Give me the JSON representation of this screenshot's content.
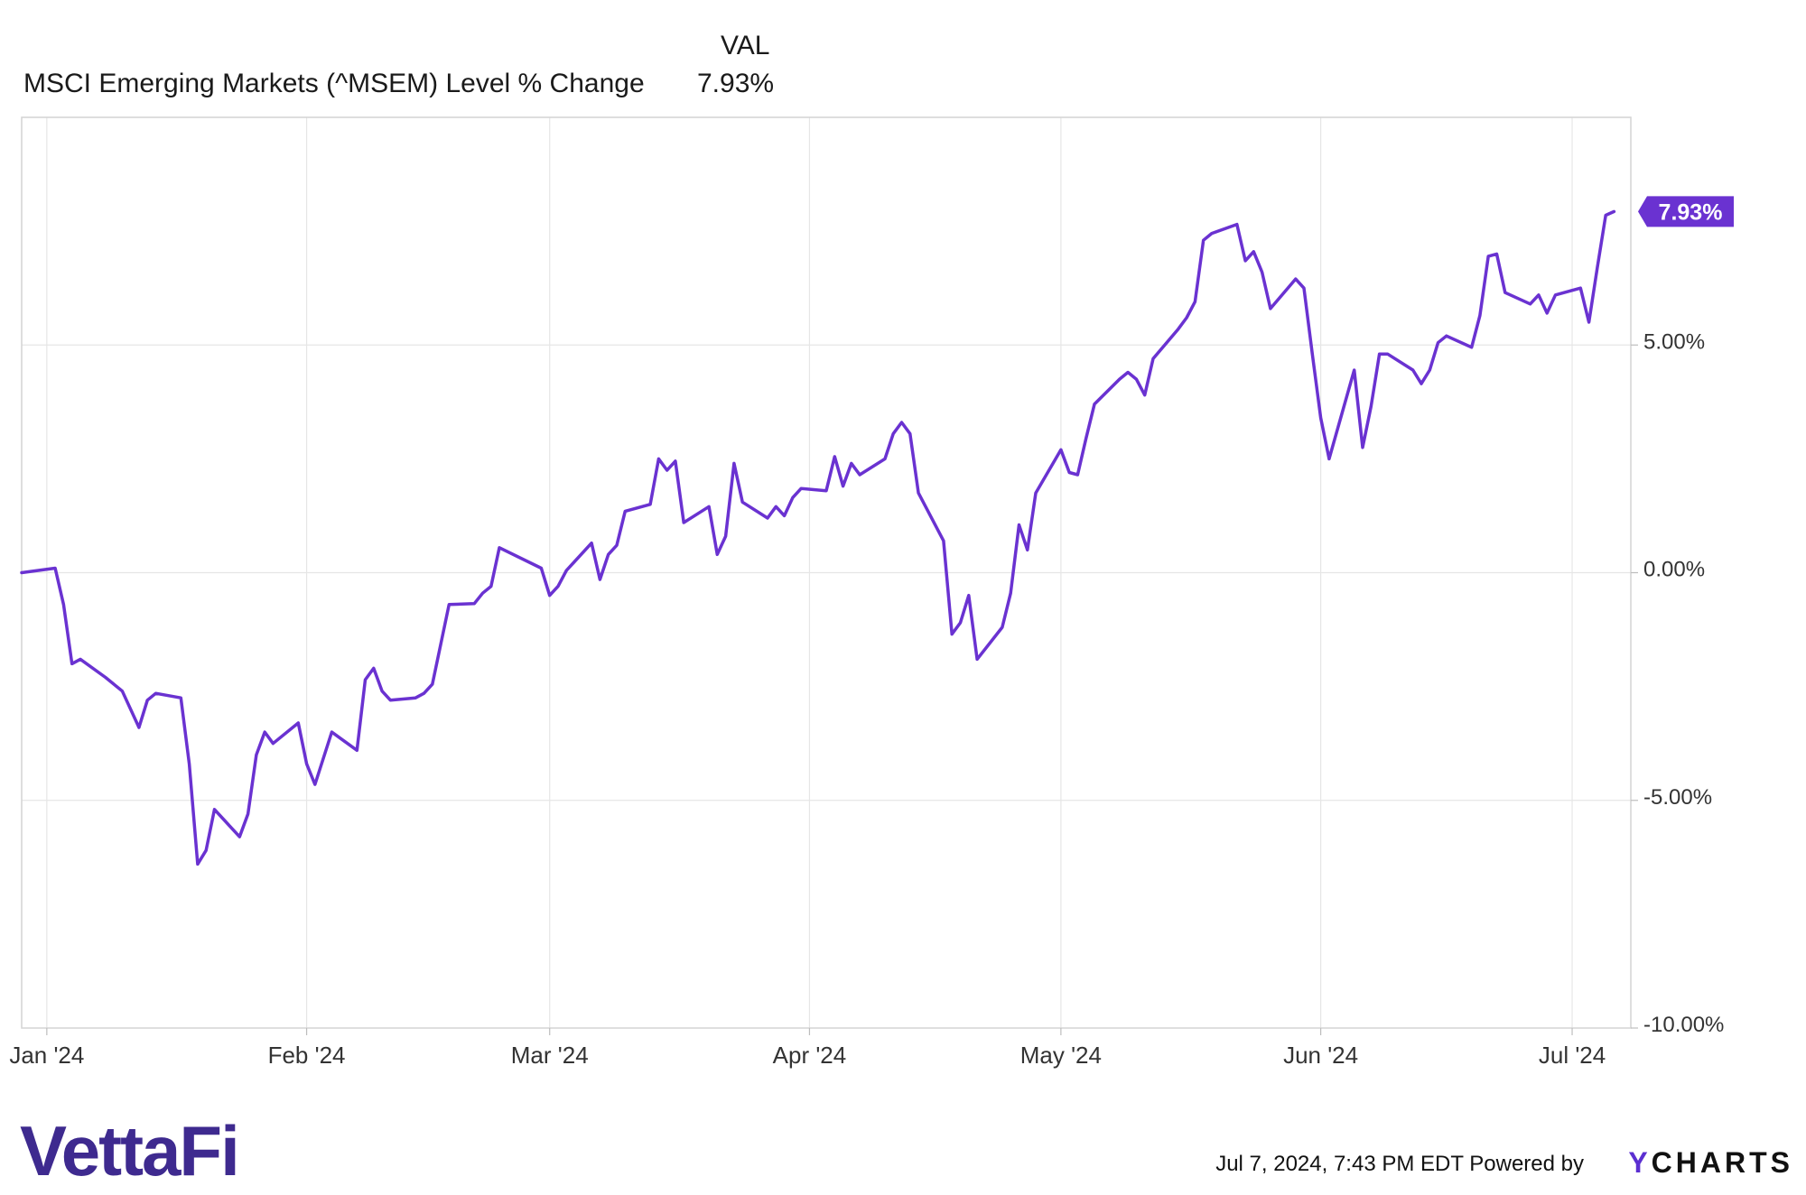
{
  "header": {
    "column_label": "VAL",
    "series_label": "MSCI Emerging Markets (^MSEM) Level % Change",
    "series_value": "7.93%"
  },
  "footer": {
    "timestamp": "Jul 7, 2024, 7:43 PM EDT",
    "powered_by": "Powered by",
    "ycharts_y": "Y",
    "ycharts_rest": "CHARTS",
    "brand": "VettaFi"
  },
  "colors": {
    "line": "#6a32d1",
    "end_tag": "#6a32d1",
    "grid": "#e6e6e6",
    "brand": "#3e2a8f"
  },
  "chart_data": {
    "type": "line",
    "title": "MSCI Emerging Markets (^MSEM) Level % Change",
    "xlabel": "",
    "ylabel": "",
    "grid": true,
    "legend": "top-left",
    "ylim": [
      -10,
      10
    ],
    "y_ticks": [
      {
        "value": 5,
        "label": "5.00%"
      },
      {
        "value": 0,
        "label": "0.00%"
      },
      {
        "value": -5,
        "label": "-5.00%"
      },
      {
        "value": -10,
        "label": "-10.00%"
      }
    ],
    "xlim": [
      "2023-12-29",
      "2024-07-08"
    ],
    "x_ticks": [
      {
        "date": "2024-01-01",
        "label": "Jan '24"
      },
      {
        "date": "2024-02-01",
        "label": "Feb '24"
      },
      {
        "date": "2024-03-01",
        "label": "Mar '24"
      },
      {
        "date": "2024-04-01",
        "label": "Apr '24"
      },
      {
        "date": "2024-05-01",
        "label": "May '24"
      },
      {
        "date": "2024-06-01",
        "label": "Jun '24"
      },
      {
        "date": "2024-07-01",
        "label": "Jul '24"
      }
    ],
    "end_label": "7.93%",
    "series": [
      {
        "name": "MSCI Emerging Markets (^MSEM) Level % Change",
        "points": [
          [
            "2023-12-29",
            0.0
          ],
          [
            "2024-01-02",
            0.1
          ],
          [
            "2024-01-03",
            -0.7
          ],
          [
            "2024-01-04",
            -2.0
          ],
          [
            "2024-01-05",
            -1.9
          ],
          [
            "2024-01-08",
            -2.3
          ],
          [
            "2024-01-10",
            -2.6
          ],
          [
            "2024-01-12",
            -3.4
          ],
          [
            "2024-01-13",
            -2.8
          ],
          [
            "2024-01-14",
            -2.65
          ],
          [
            "2024-01-17",
            -2.75
          ],
          [
            "2024-01-18",
            -4.2
          ],
          [
            "2024-01-19",
            -6.4
          ],
          [
            "2024-01-20",
            -6.1
          ],
          [
            "2024-01-21",
            -5.2
          ],
          [
            "2024-01-24",
            -5.8
          ],
          [
            "2024-01-25",
            -5.3
          ],
          [
            "2024-01-26",
            -4.0
          ],
          [
            "2024-01-27",
            -3.5
          ],
          [
            "2024-01-28",
            -3.75
          ],
          [
            "2024-01-31",
            -3.3
          ],
          [
            "2024-02-01",
            -4.2
          ],
          [
            "2024-02-02",
            -4.65
          ],
          [
            "2024-02-04",
            -3.5
          ],
          [
            "2024-02-07",
            -3.9
          ],
          [
            "2024-02-08",
            -2.35
          ],
          [
            "2024-02-09",
            -2.1
          ],
          [
            "2024-02-10",
            -2.6
          ],
          [
            "2024-02-11",
            -2.8
          ],
          [
            "2024-02-14",
            -2.75
          ],
          [
            "2024-02-15",
            -2.65
          ],
          [
            "2024-02-16",
            -2.45
          ],
          [
            "2024-02-18",
            -0.7
          ],
          [
            "2024-02-21",
            -0.68
          ],
          [
            "2024-02-22",
            -0.45
          ],
          [
            "2024-02-23",
            -0.3
          ],
          [
            "2024-02-24",
            0.55
          ],
          [
            "2024-02-29",
            0.1
          ],
          [
            "2024-03-01",
            -0.5
          ],
          [
            "2024-03-02",
            -0.3
          ],
          [
            "2024-03-03",
            0.05
          ],
          [
            "2024-03-06",
            0.65
          ],
          [
            "2024-03-07",
            -0.15
          ],
          [
            "2024-03-08",
            0.4
          ],
          [
            "2024-03-09",
            0.6
          ],
          [
            "2024-03-10",
            1.35
          ],
          [
            "2024-03-13",
            1.5
          ],
          [
            "2024-03-14",
            2.5
          ],
          [
            "2024-03-15",
            2.25
          ],
          [
            "2024-03-16",
            2.45
          ],
          [
            "2024-03-17",
            1.1
          ],
          [
            "2024-03-20",
            1.45
          ],
          [
            "2024-03-21",
            0.4
          ],
          [
            "2024-03-22",
            0.8
          ],
          [
            "2024-03-23",
            2.4
          ],
          [
            "2024-03-24",
            1.55
          ],
          [
            "2024-03-27",
            1.2
          ],
          [
            "2024-03-28",
            1.45
          ],
          [
            "2024-03-29",
            1.25
          ],
          [
            "2024-03-30",
            1.65
          ],
          [
            "2024-03-31",
            1.85
          ],
          [
            "2024-04-03",
            1.8
          ],
          [
            "2024-04-04",
            2.55
          ],
          [
            "2024-04-05",
            1.9
          ],
          [
            "2024-04-06",
            2.4
          ],
          [
            "2024-04-07",
            2.15
          ],
          [
            "2024-04-10",
            2.5
          ],
          [
            "2024-04-11",
            3.05
          ],
          [
            "2024-04-12",
            3.3
          ],
          [
            "2024-04-13",
            3.05
          ],
          [
            "2024-04-14",
            1.75
          ],
          [
            "2024-04-17",
            0.7
          ],
          [
            "2024-04-18",
            -1.35
          ],
          [
            "2024-04-19",
            -1.1
          ],
          [
            "2024-04-20",
            -0.5
          ],
          [
            "2024-04-21",
            -1.9
          ],
          [
            "2024-04-24",
            -1.2
          ],
          [
            "2024-04-25",
            -0.45
          ],
          [
            "2024-04-26",
            1.05
          ],
          [
            "2024-04-27",
            0.5
          ],
          [
            "2024-04-28",
            1.75
          ],
          [
            "2024-05-01",
            2.7
          ],
          [
            "2024-05-02",
            2.2
          ],
          [
            "2024-05-03",
            2.15
          ],
          [
            "2024-05-04",
            2.95
          ],
          [
            "2024-05-05",
            3.7
          ],
          [
            "2024-05-08",
            4.25
          ],
          [
            "2024-05-09",
            4.4
          ],
          [
            "2024-05-10",
            4.25
          ],
          [
            "2024-05-11",
            3.9
          ],
          [
            "2024-05-12",
            4.7
          ],
          [
            "2024-05-15",
            5.35
          ],
          [
            "2024-05-16",
            5.6
          ],
          [
            "2024-05-17",
            5.95
          ],
          [
            "2024-05-18",
            7.3
          ],
          [
            "2024-05-19",
            7.45
          ],
          [
            "2024-05-22",
            7.65
          ],
          [
            "2024-05-23",
            6.85
          ],
          [
            "2024-05-24",
            7.05
          ],
          [
            "2024-05-25",
            6.6
          ],
          [
            "2024-05-26",
            5.8
          ],
          [
            "2024-05-29",
            6.45
          ],
          [
            "2024-05-30",
            6.25
          ],
          [
            "2024-05-31",
            4.8
          ],
          [
            "2024-06-01",
            3.4
          ],
          [
            "2024-06-02",
            2.5
          ],
          [
            "2024-06-05",
            4.45
          ],
          [
            "2024-06-06",
            2.75
          ],
          [
            "2024-06-07",
            3.65
          ],
          [
            "2024-06-08",
            4.8
          ],
          [
            "2024-06-09",
            4.8
          ],
          [
            "2024-06-12",
            4.45
          ],
          [
            "2024-06-13",
            4.15
          ],
          [
            "2024-06-14",
            4.45
          ],
          [
            "2024-06-15",
            5.05
          ],
          [
            "2024-06-16",
            5.2
          ],
          [
            "2024-06-19",
            4.95
          ],
          [
            "2024-06-20",
            5.65
          ],
          [
            "2024-06-21",
            6.95
          ],
          [
            "2024-06-22",
            7.0
          ],
          [
            "2024-06-23",
            6.15
          ],
          [
            "2024-06-26",
            5.9
          ],
          [
            "2024-06-27",
            6.1
          ],
          [
            "2024-06-28",
            5.7
          ],
          [
            "2024-06-29",
            6.1
          ],
          [
            "2024-07-02",
            6.25
          ],
          [
            "2024-07-03",
            5.5
          ],
          [
            "2024-07-04",
            6.7
          ],
          [
            "2024-07-05",
            7.85
          ],
          [
            "2024-07-06",
            7.93
          ]
        ]
      }
    ]
  }
}
